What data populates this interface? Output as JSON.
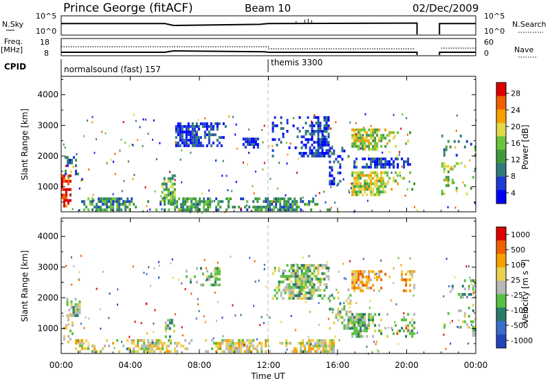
{
  "header": {
    "station": "Prince George (fitACF)",
    "beam": "Beam 10",
    "date": "02/Dec/2009"
  },
  "labels": {
    "nsky": "N.Sky",
    "freq": "Freq.",
    "freq_unit": "[MHz]",
    "cpid": "CPID",
    "nsearch": "N.Search",
    "nave": "Nave",
    "cpid_1": "normalsound (fast) 157",
    "cpid_2": "themis 3300",
    "nsky_tick_top": "10^5",
    "nsky_tick_bottom": "10^0",
    "nsearch_tick_top": "10^5",
    "nsearch_tick_bottom": "10^0",
    "freq_tick_top": "18",
    "freq_tick_bottom": "8",
    "nave_tick_top": "60",
    "nave_tick_bottom": "0"
  },
  "colors": {
    "power_scale": [
      "#0000ff",
      "#1e3cd2",
      "#2f7a7a",
      "#3f9a3f",
      "#6cc43c",
      "#e0d84a",
      "#f5a000",
      "#f06000",
      "#dd0000"
    ],
    "velocity_scale": [
      "#2244bb",
      "#3a6dcc",
      "#2a7a6a",
      "#58c040",
      "#b8b8b8",
      "#e8d050",
      "#f5a000",
      "#f06000",
      "#dd0000"
    ]
  },
  "chart_data": [
    {
      "type": "line",
      "name": "summary-strip",
      "series": [
        {
          "name": "N.Sky",
          "x": [
            0,
            6,
            6.5,
            11.5,
            12,
            20.5,
            22,
            24
          ],
          "values": [
            3.0,
            3.0,
            2.5,
            2.8,
            3.0,
            3.1,
            3.0,
            3.0
          ]
        },
        {
          "name": "Freq.",
          "x": [
            0,
            6,
            6.5,
            11.8,
            12,
            20.5,
            22,
            24
          ],
          "values": [
            10.0,
            10.0,
            10.8,
            10.3,
            10.0,
            10.0,
            10.0,
            10.0
          ]
        }
      ],
      "gaps": [
        [
          20.6,
          21.9
        ]
      ],
      "cpid_change_hour": 12,
      "cpid_segments": [
        {
          "label": "normalsound (fast) 157",
          "start": 0,
          "end": 12
        },
        {
          "label": "themis 3300",
          "start": 12,
          "end": 24
        }
      ]
    },
    {
      "type": "heatmap",
      "name": "power",
      "ylabel": "Slant Range [km]",
      "colorbar_label": "Power [dB]",
      "colorbar_ticks": [
        "28",
        "24",
        "20",
        "16",
        "12",
        "8",
        "4"
      ],
      "colorbar_range": [
        0,
        30
      ],
      "ylim": [
        180,
        4600
      ],
      "yticks": [
        "1000",
        "2000",
        "3000",
        "4000"
      ],
      "xlim": [
        0,
        24
      ],
      "gaps": [
        [
          20.6,
          21.9
        ]
      ],
      "regions": [
        {
          "t0": 0.0,
          "t1": 0.5,
          "r0": 400,
          "r1": 1400,
          "level": 0.93
        },
        {
          "t0": 0.2,
          "t1": 1.2,
          "r0": 1200,
          "r1": 2000,
          "level": 0.25
        },
        {
          "t0": 0.8,
          "t1": 15.8,
          "r0": 220,
          "r1": 650,
          "level": 0.35
        },
        {
          "t0": 5.8,
          "t1": 6.6,
          "r0": 500,
          "r1": 1400,
          "level": 0.45
        },
        {
          "t0": 6.6,
          "t1": 9.5,
          "r0": 2300,
          "r1": 3100,
          "level": 0.15
        },
        {
          "t0": 10.5,
          "t1": 11.4,
          "r0": 2300,
          "r1": 2600,
          "level": 0.15
        },
        {
          "t0": 12.2,
          "t1": 15.5,
          "r0": 2000,
          "r1": 3300,
          "level": 0.15
        },
        {
          "t0": 15.5,
          "t1": 16.8,
          "r0": 1000,
          "r1": 2300,
          "level": 0.15
        },
        {
          "t0": 16.8,
          "t1": 20.5,
          "r0": 1600,
          "r1": 1950,
          "level": 0.15
        },
        {
          "t0": 16.8,
          "t1": 20.5,
          "r0": 700,
          "r1": 1500,
          "level": 0.55
        },
        {
          "t0": 16.8,
          "t1": 20.5,
          "r0": 2200,
          "r1": 2900,
          "level": 0.55
        },
        {
          "t0": 22.0,
          "t1": 24.0,
          "r0": 800,
          "r1": 1800,
          "level": 0.5
        },
        {
          "t0": 22.0,
          "t1": 24.0,
          "r0": 2000,
          "r1": 2700,
          "level": 0.3
        }
      ]
    },
    {
      "type": "heatmap",
      "name": "velocity",
      "ylabel": "Slant Range [km]",
      "colorbar_label": "Velocity [m s^-1]",
      "colorbar_ticks": [
        "1000",
        "500",
        "100",
        "25",
        "-25",
        "-100",
        "-500",
        "-1000"
      ],
      "ylim": [
        180,
        4600
      ],
      "yticks": [
        "1000",
        "2000",
        "3000",
        "4000"
      ],
      "xlim": [
        0,
        24
      ],
      "gaps": [
        [
          20.6,
          21.9
        ]
      ],
      "regions": [
        {
          "t0": 0.0,
          "t1": 0.6,
          "r0": 600,
          "r1": 1500,
          "level": 0.55
        },
        {
          "t0": 0.3,
          "t1": 1.1,
          "r0": 1400,
          "r1": 2000,
          "level": 0.45
        },
        {
          "t0": 0.8,
          "t1": 15.8,
          "r0": 220,
          "r1": 650,
          "level": 0.55
        },
        {
          "t0": 6.0,
          "t1": 6.5,
          "r0": 700,
          "r1": 1400,
          "level": 0.4
        },
        {
          "t0": 7.2,
          "t1": 9.2,
          "r0": 2400,
          "r1": 3000,
          "level": 0.45
        },
        {
          "t0": 12.2,
          "t1": 15.5,
          "r0": 2000,
          "r1": 3100,
          "level": 0.45
        },
        {
          "t0": 15.5,
          "t1": 16.8,
          "r0": 1000,
          "r1": 2300,
          "level": 0.45
        },
        {
          "t0": 16.8,
          "t1": 20.5,
          "r0": 700,
          "r1": 1500,
          "level": 0.45
        },
        {
          "t0": 16.8,
          "t1": 20.5,
          "r0": 2200,
          "r1": 2900,
          "level": 0.7
        },
        {
          "t0": 22.0,
          "t1": 24.0,
          "r0": 800,
          "r1": 1800,
          "level": 0.45
        },
        {
          "t0": 22.0,
          "t1": 24.0,
          "r0": 2000,
          "r1": 2600,
          "level": 0.4
        }
      ]
    }
  ],
  "axes": {
    "xticks": [
      "00:00",
      "04:00",
      "08:00",
      "12:00",
      "16:00",
      "20:00",
      "00:00"
    ],
    "xlabel": "Time UT"
  }
}
